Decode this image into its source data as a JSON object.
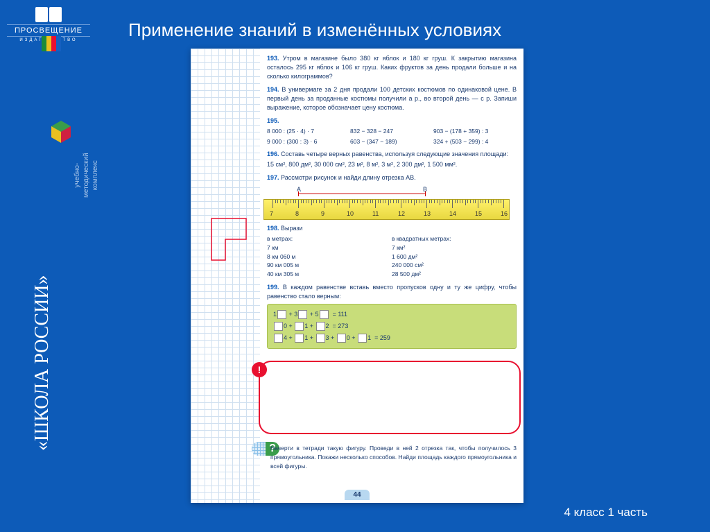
{
  "logo": {
    "brand": "ПРОСВЕЩЕНИЕ",
    "sub": "ИЗДАТЕЛЬСТВО"
  },
  "sidebar": {
    "title": "«ШКОЛА РОССИИ»",
    "sub": "учебно-\nметодический\nкомплекс"
  },
  "slide_title": "Применение знаний в изменённых условиях",
  "footer": "4 класс 1 часть",
  "page_number": "44",
  "stripe_colors": [
    "#1a8a3a",
    "#e8c020",
    "#e81030",
    "#1560c0"
  ],
  "problems": {
    "p193": {
      "num": "193.",
      "text": "Утром в магазине было 380 кг яблок и 180 кг груш. К закрытию магазина осталось 295 кг яблок и 106 кг груш. Каких фруктов за день продали больше и на сколько килограммов?"
    },
    "p194": {
      "num": "194.",
      "text": "В универмаге за 2 дня продали 100 детских костюмов по одинаковой цене. В первый день за проданные костюмы получили a р., во второй день — c р. Запиши выражение, которое обозначает цену костюма."
    },
    "p195": {
      "num": "195.",
      "rows": [
        [
          "8 000 : (25 · 4) · 7",
          "832 − 328 − 247",
          "903 − (178 + 359) : 3"
        ],
        [
          "9 000 : (300 : 3) · 6",
          "603 − (347 − 189)",
          "324 + (503 − 299) : 4"
        ]
      ]
    },
    "p196": {
      "num": "196.",
      "text": "Составь четыре верных равенства, используя следующие значения площади:",
      "values": "15 см², 800 дм², 30 000 см², 23 м², 8 м², 3 м², 2 300 дм², 1 500 мм²."
    },
    "p197": {
      "num": "197.",
      "text": "Рассмотри рисунок и найди длину отрезка AB.",
      "labels": {
        "a": "A",
        "b": "B"
      },
      "ruler_nums": [
        "7",
        "8",
        "9",
        "10",
        "11",
        "12",
        "13",
        "14",
        "15",
        "16"
      ]
    },
    "p198": {
      "num": "198.",
      "lead": "Вырази",
      "h1": "в метрах:",
      "h2": "в квадратных метрах:",
      "col1": [
        "7 км",
        "8 км  060 м",
        "90 км  005 м",
        "40 км  305 м"
      ],
      "col2": [
        "7 км²",
        "1 600 дм²",
        "240 000 см²",
        "28 500 дм²"
      ]
    },
    "p199": {
      "num": "199.",
      "text": "В каждом равенстве вставь вместо пропусков одну и ту же цифру, чтобы равенство стало верным:",
      "eq1_suffix": "= 111",
      "eq2_suffix": "= 273",
      "eq3_suffix": "= 259"
    },
    "bottom": "Начерти в тетради такую фигуру. Проведи в ней 2 отрезка так, чтобы получилось 3 прямоугольника. Покажи несколько способов. Найди площадь каждого прямоугольника и всей фигуры."
  },
  "colors": {
    "bg": "#0d5bb8",
    "highlight_border": "#e81030",
    "green_box": "#c8dd7a",
    "ruler": "#fff06a"
  }
}
